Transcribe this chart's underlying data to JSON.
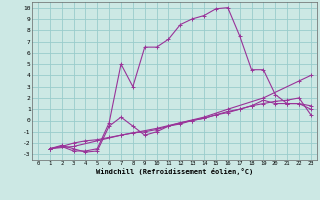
{
  "xlabel": "Windchill (Refroidissement éolien,°C)",
  "bg_color": "#cce8e4",
  "grid_color": "#99cccc",
  "line_color": "#993399",
  "xlim": [
    -0.5,
    23.5
  ],
  "ylim": [
    -3.5,
    10.5
  ],
  "xticks": [
    0,
    1,
    2,
    3,
    4,
    5,
    6,
    7,
    8,
    9,
    10,
    11,
    12,
    13,
    14,
    15,
    16,
    17,
    18,
    19,
    20,
    21,
    22,
    23
  ],
  "yticks": [
    -3,
    -2,
    -1,
    0,
    1,
    2,
    3,
    4,
    5,
    6,
    7,
    8,
    9,
    10
  ],
  "line1_x": [
    1,
    2,
    3,
    4,
    5,
    6,
    7,
    8,
    9,
    10,
    11,
    12,
    13,
    14,
    15,
    16,
    17,
    18,
    19,
    20,
    21,
    22,
    23
  ],
  "line1_y": [
    -2.5,
    -2.3,
    -2.7,
    -2.7,
    -2.5,
    -0.2,
    5.0,
    3.0,
    6.5,
    6.5,
    7.2,
    8.5,
    9.0,
    9.3,
    9.9,
    10.0,
    7.5,
    4.5,
    4.5,
    2.3,
    1.5,
    1.5,
    1.3
  ],
  "line2_x": [
    1,
    2,
    3,
    4,
    5,
    6,
    7,
    8,
    9,
    10,
    11,
    12,
    13,
    14,
    15,
    16,
    17,
    18,
    19,
    20,
    21,
    22,
    23
  ],
  "line2_y": [
    -2.5,
    -2.2,
    -2.5,
    -2.8,
    -2.7,
    -0.5,
    0.3,
    -0.5,
    -1.3,
    -1.0,
    -0.5,
    -0.2,
    0.0,
    0.2,
    0.5,
    0.8,
    1.0,
    1.3,
    1.8,
    1.5,
    1.5,
    1.5,
    1.0
  ],
  "line3_x": [
    1,
    2,
    3,
    4,
    5,
    6,
    7,
    8,
    9,
    10,
    11,
    12,
    13,
    14,
    15,
    16,
    17,
    18,
    19,
    20,
    21,
    22,
    23
  ],
  "line3_y": [
    -2.5,
    -2.3,
    -2.0,
    -1.8,
    -1.7,
    -1.5,
    -1.3,
    -1.1,
    -1.0,
    -0.8,
    -0.5,
    -0.3,
    -0.0,
    0.2,
    0.5,
    0.7,
    1.0,
    1.3,
    1.5,
    1.7,
    1.8,
    2.0,
    0.5
  ],
  "line4_x": [
    1,
    3,
    7,
    10,
    14,
    16,
    19,
    22,
    23
  ],
  "line4_y": [
    -2.5,
    -2.3,
    -1.3,
    -0.7,
    0.3,
    1.0,
    2.0,
    3.5,
    4.0
  ]
}
